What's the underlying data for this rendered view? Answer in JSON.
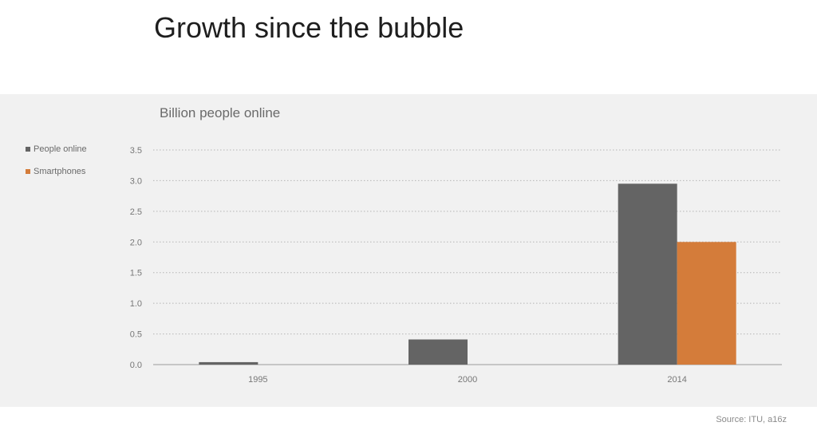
{
  "slide": {
    "title": "Growth since the bubble",
    "source": "Source: ITU, a16z"
  },
  "colors": {
    "people_online": "#646464",
    "smartphones": "#d47c3a",
    "panel_bg": "#f1f1f1"
  },
  "chart_data": {
    "type": "bar",
    "title": "Billion people online",
    "xlabel": "",
    "ylabel": "",
    "categories": [
      "1995",
      "2000",
      "2014"
    ],
    "series": [
      {
        "name": "People online",
        "values": [
          0.04,
          0.41,
          2.95
        ],
        "color": "#646464"
      },
      {
        "name": "Smartphones",
        "values": [
          null,
          null,
          2.0
        ],
        "color": "#d47c3a"
      }
    ],
    "ylim": [
      0,
      3.5
    ],
    "yticks": [
      "0.0",
      "0.5",
      "1.0",
      "1.5",
      "2.0",
      "2.5",
      "3.0",
      "3.5"
    ],
    "grid": true,
    "legend": "left"
  }
}
